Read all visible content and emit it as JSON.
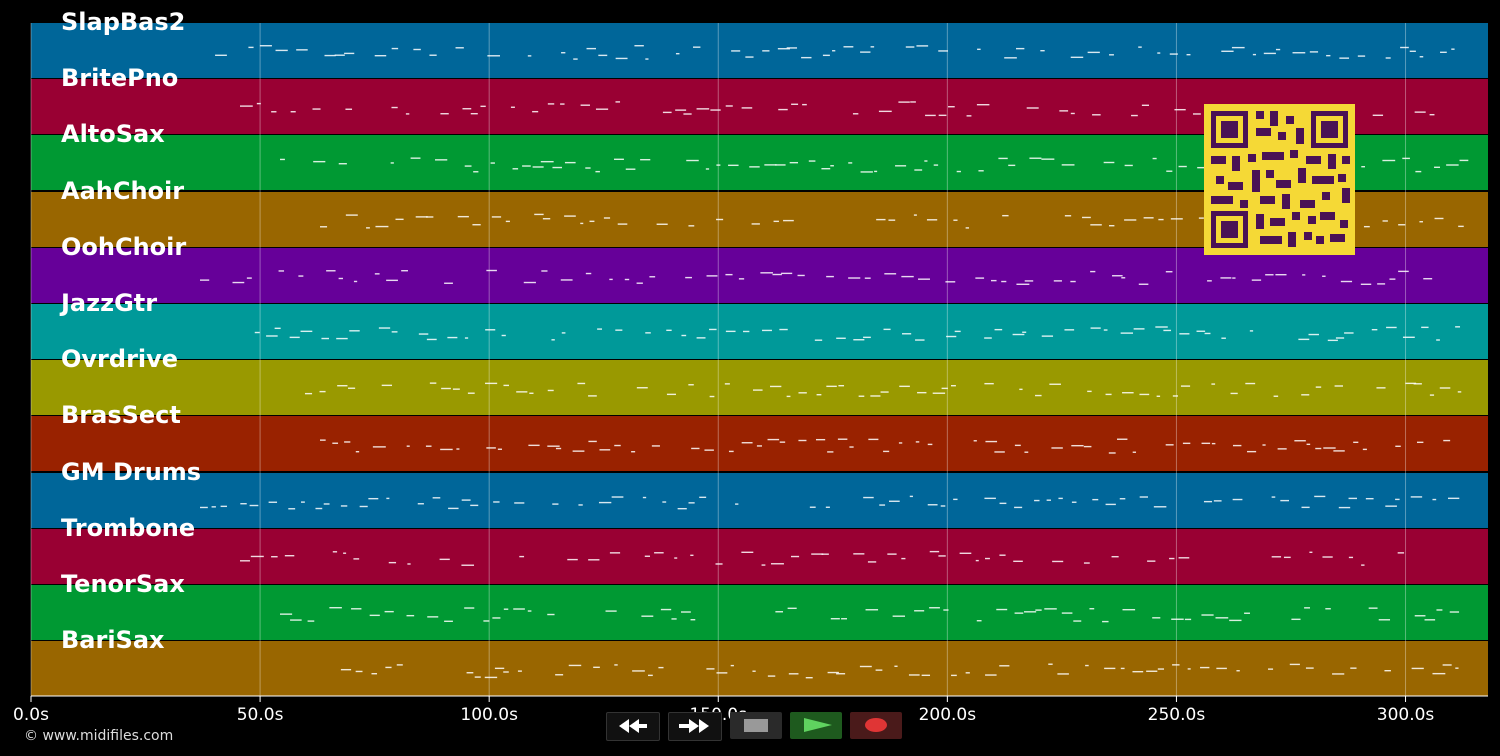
{
  "tracks": [
    {
      "name": "SlapBas2",
      "color": "#006699"
    },
    {
      "name": "BritePno",
      "color": "#990033"
    },
    {
      "name": "AltoSax",
      "color": "#009933"
    },
    {
      "name": "AahChoir",
      "color": "#996600"
    },
    {
      "name": "OohChoir",
      "color": "#660099"
    },
    {
      "name": "JazzGtr",
      "color": "#009999"
    },
    {
      "name": "Ovrdrive",
      "color": "#999900"
    },
    {
      "name": "BrasSect",
      "color": "#992200"
    },
    {
      "name": "GM Drums",
      "color": "#006699"
    },
    {
      "name": "Trombone",
      "color": "#990033"
    },
    {
      "name": "TenorSax",
      "color": "#009933"
    },
    {
      "name": "BariSax",
      "color": "#996600"
    }
  ],
  "timeline": {
    "ticks": [
      "0.0s",
      "50.0s",
      "100.0s",
      "150.0s",
      "200.0s",
      "250.0s",
      "300.0s"
    ],
    "tick_values": [
      0,
      50,
      100,
      150,
      200,
      250,
      300
    ],
    "max_seconds": 318
  },
  "controls": {
    "rewind_icon": "rewind-icon",
    "forward_icon": "fast-forward-icon",
    "stop_icon": "stop-icon",
    "play_icon": "play-icon",
    "record_icon": "record-icon"
  },
  "footer": {
    "copyright": "© www.midifiles.com"
  },
  "qr_icon": "qr-code-icon"
}
